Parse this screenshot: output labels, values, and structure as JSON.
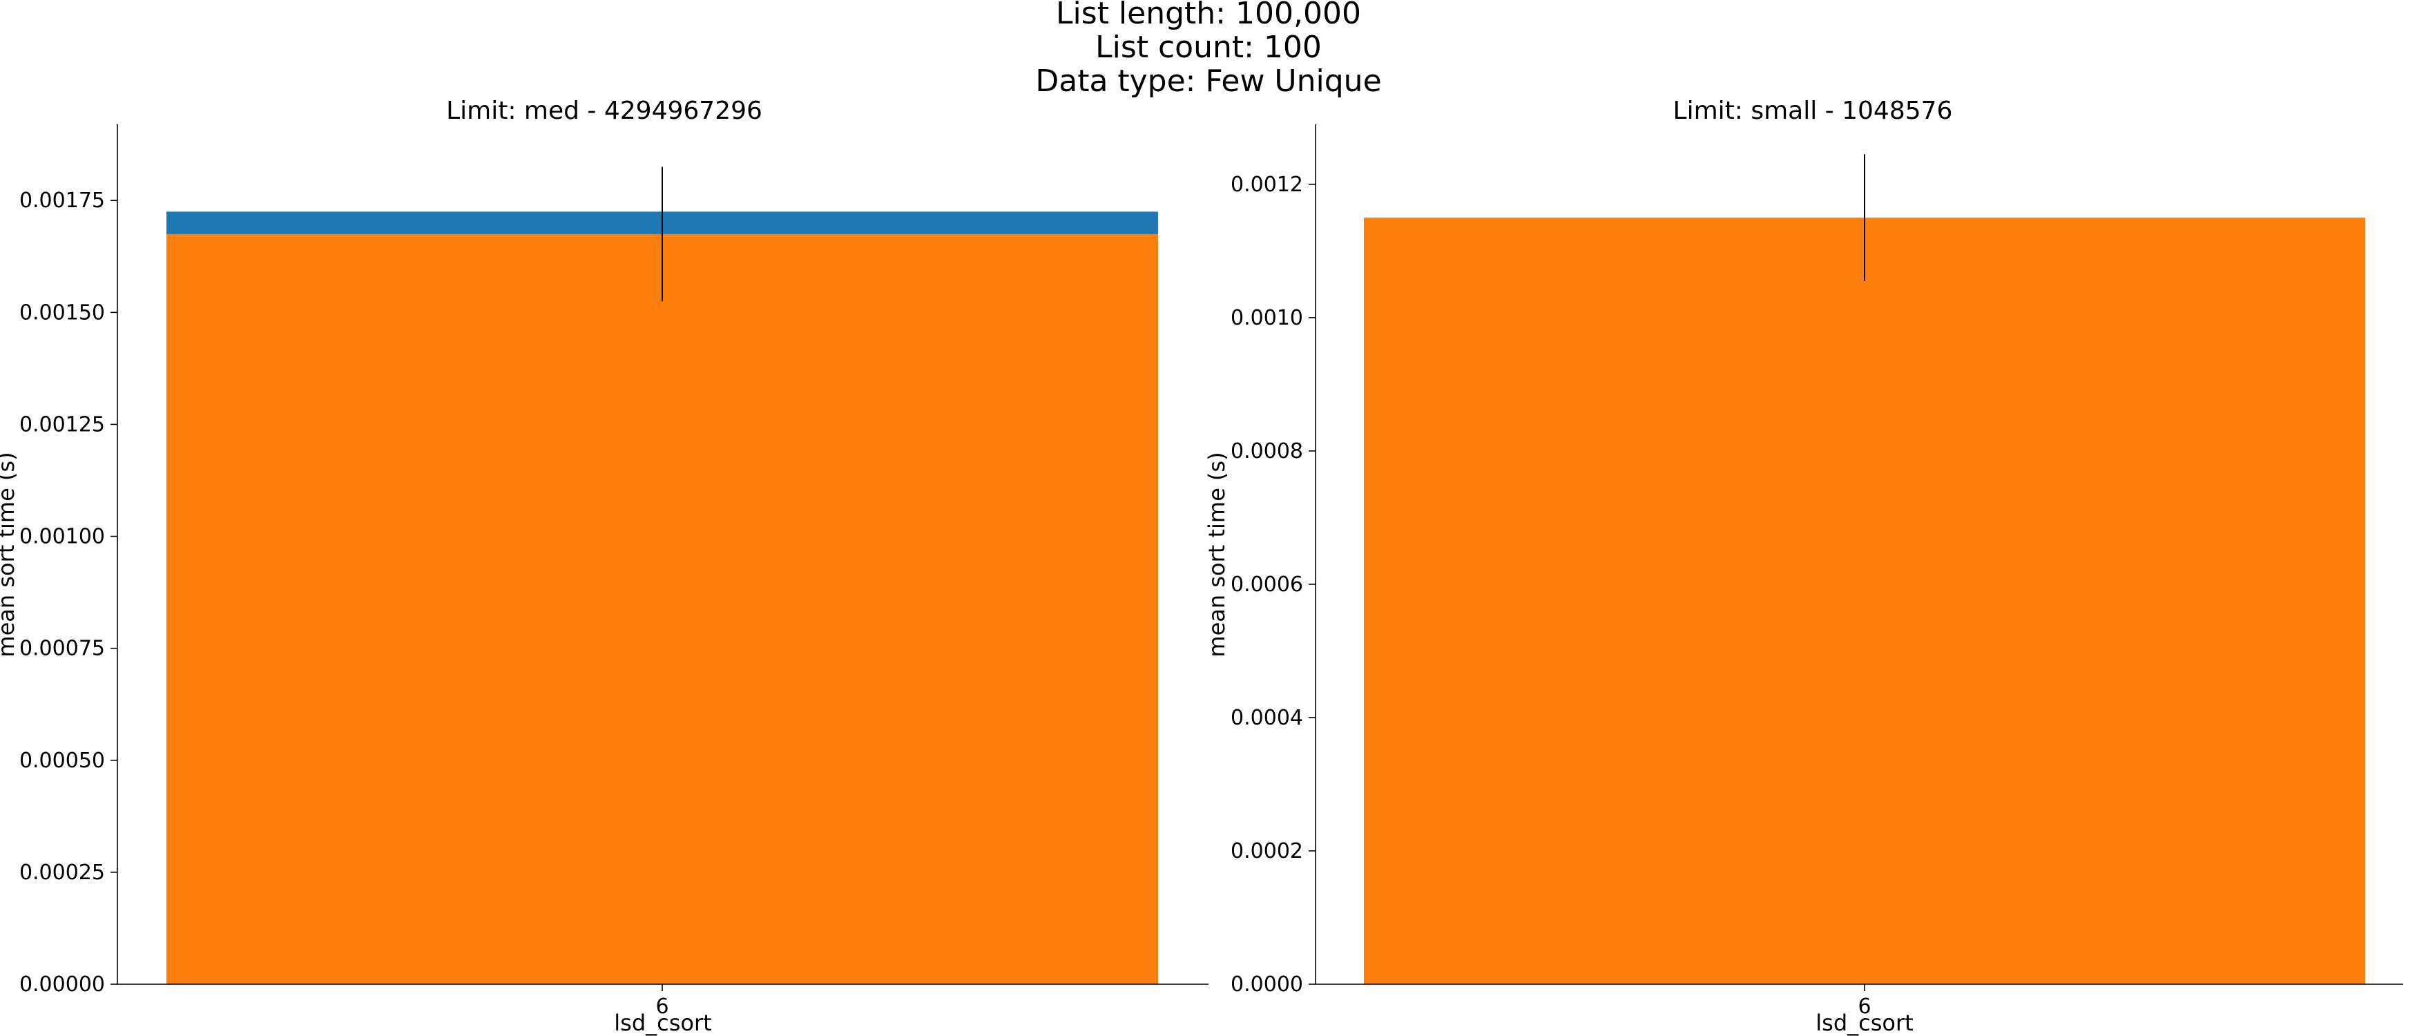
{
  "figure": {
    "suptitle": [
      "List length: 100,000",
      "List count: 100",
      "Data type: Few Unique"
    ]
  },
  "colors": {
    "series_back": "#1f77b4",
    "series_front": "#ff7f0e",
    "error_bar": "#000000",
    "axis": "#000000"
  },
  "chart_data": [
    {
      "type": "bar",
      "title": "Limit: med -  4294967296",
      "xlabel": "lsd_csort",
      "ylabel": "mean sort time (s)",
      "categories": [
        "6"
      ],
      "ylim": [
        0,
        0.00192
      ],
      "yticks": [
        "0.00000",
        "0.00025",
        "0.00050",
        "0.00075",
        "0.00100",
        "0.00125",
        "0.00150",
        "0.00175"
      ],
      "grid": false,
      "series": [
        {
          "values": [
            0.001725
          ],
          "color": "#1f77b4"
        },
        {
          "values": [
            0.001675
          ],
          "color": "#ff7f0e",
          "error": [
            0.00015
          ]
        }
      ]
    },
    {
      "type": "bar",
      "title": "Limit: small -  1048576",
      "xlabel": "lsd_csort",
      "ylabel": "mean sort time (s)",
      "categories": [
        "6"
      ],
      "ylim": [
        0,
        0.00129
      ],
      "yticks": [
        "0.0000",
        "0.0002",
        "0.0004",
        "0.0006",
        "0.0008",
        "0.0010",
        "0.0012"
      ],
      "grid": false,
      "series": [
        {
          "values": [
            0.00115
          ],
          "color": "#ff7f0e",
          "error": [
            9.5e-05
          ]
        }
      ]
    }
  ]
}
